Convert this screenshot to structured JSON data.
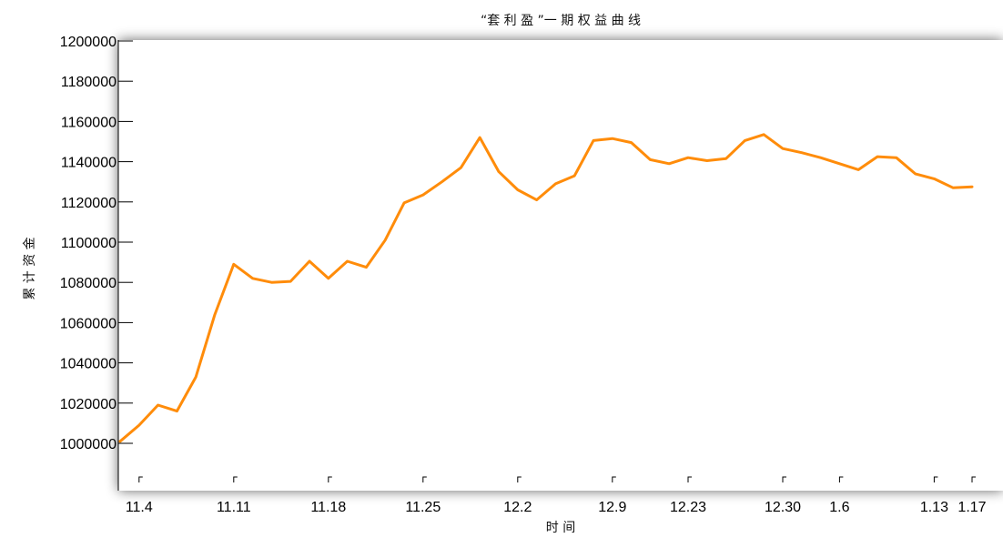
{
  "chart_data": {
    "type": "line",
    "title": "“套 利 盈 ”一 期 权 益 曲 线",
    "xlabel": "时 间",
    "ylabel": "累 计 资 金",
    "ylim": [
      990000,
      1200000
    ],
    "grid": false,
    "line_color": "#ff8c0a",
    "y_ticks": [
      1000000,
      1020000,
      1040000,
      1060000,
      1080000,
      1100000,
      1120000,
      1140000,
      1160000,
      1180000,
      1200000
    ],
    "y_tick_labels": [
      "1000000",
      "1020000",
      "1040000",
      "1060000",
      "1080000",
      "1100000",
      "1120000",
      "1140000",
      "1160000",
      "1180000",
      "1200000"
    ],
    "x_ticks": [
      {
        "label": "11.4",
        "index": 1
      },
      {
        "label": "11.11",
        "index": 6
      },
      {
        "label": "11.18",
        "index": 11
      },
      {
        "label": "11.25",
        "index": 16
      },
      {
        "label": "12.2",
        "index": 21
      },
      {
        "label": "12.9",
        "index": 26
      },
      {
        "label": "12.23",
        "index": 30
      },
      {
        "label": "12.30",
        "index": 35
      },
      {
        "label": "1.6",
        "index": 38
      },
      {
        "label": "1.13",
        "index": 43
      },
      {
        "label": "1.17",
        "index": 45
      }
    ],
    "series": [
      {
        "values": [
          1001000,
          1009000,
          1019000,
          1016000,
          1033000,
          1064000,
          1089000,
          1082000,
          1080000,
          1080500,
          1090500,
          1082000,
          1090500,
          1087500,
          1101000,
          1119500,
          1123500,
          1130000,
          1137000,
          1152000,
          1135000,
          1126000,
          1121000,
          1129000,
          1133000,
          1150500,
          1151500,
          1149500,
          1141000,
          1139000,
          1142000,
          1140500,
          1141500,
          1150500,
          1153500,
          1146500,
          1144500,
          1142000,
          1139000,
          1136000,
          1142500,
          1142000,
          1134000,
          1131500,
          1127000,
          1127500
        ]
      }
    ]
  }
}
